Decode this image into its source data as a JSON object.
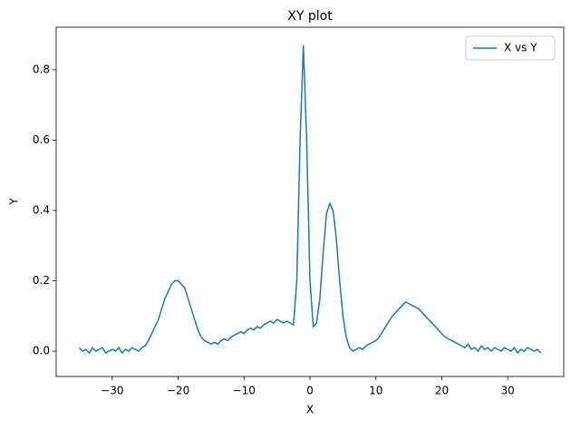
{
  "chart_data": {
    "type": "line",
    "title": "XY plot",
    "x_label": "X",
    "y_label": "Y",
    "x": [
      -35,
      -34.5,
      -34,
      -33.5,
      -33,
      -32.5,
      -32,
      -31.5,
      -31,
      -30.5,
      -30,
      -29.5,
      -29,
      -28.5,
      -28,
      -27.5,
      -27,
      -26.5,
      -26,
      -25.5,
      -25,
      -24.5,
      -24,
      -23.5,
      -23,
      -22.5,
      -22,
      -21.5,
      -21,
      -20.5,
      -20,
      -19.5,
      -19,
      -18.5,
      -18,
      -17.5,
      -17,
      -16.5,
      -16,
      -15.5,
      -15,
      -14.5,
      -14,
      -13.5,
      -13,
      -12.5,
      -12,
      -11.5,
      -11,
      -10.5,
      -10,
      -9.5,
      -9,
      -8.5,
      -8,
      -7.5,
      -7,
      -6.5,
      -6,
      -5.5,
      -5,
      -4.5,
      -4,
      -3.5,
      -3,
      -2.5,
      -2,
      -1.5,
      -1,
      -0.5,
      0,
      0.5,
      1,
      1.5,
      2,
      2.5,
      3,
      3.5,
      4,
      4.5,
      5,
      5.5,
      6,
      6.5,
      7,
      7.5,
      8,
      8.5,
      9,
      9.5,
      10,
      10.5,
      11,
      11.5,
      12,
      12.5,
      13,
      13.5,
      14,
      14.5,
      15,
      15.5,
      16,
      16.5,
      17,
      17.5,
      18,
      18.5,
      19,
      19.5,
      20,
      20.5,
      21,
      21.5,
      22,
      22.5,
      23,
      23.5,
      24,
      24.5,
      25,
      25.5,
      26,
      26.5,
      27,
      27.5,
      28,
      28.5,
      29,
      29.5,
      30,
      30.5,
      31,
      31.5,
      32,
      32.5,
      33,
      33.5,
      34,
      34.5,
      35
    ],
    "series": [
      {
        "name": "X vs Y",
        "color": "#1f77b4",
        "values": [
          0.01,
          0.0,
          0.005,
          -0.005,
          0.01,
          0.0,
          0.005,
          0.01,
          -0.005,
          0.0,
          0.005,
          0.0,
          0.01,
          -0.005,
          0.005,
          0.0,
          0.01,
          0.005,
          0.0,
          0.01,
          0.015,
          0.03,
          0.05,
          0.07,
          0.09,
          0.12,
          0.15,
          0.17,
          0.19,
          0.2,
          0.2,
          0.19,
          0.18,
          0.15,
          0.12,
          0.09,
          0.06,
          0.04,
          0.03,
          0.025,
          0.02,
          0.025,
          0.02,
          0.03,
          0.035,
          0.03,
          0.04,
          0.045,
          0.05,
          0.055,
          0.05,
          0.06,
          0.065,
          0.06,
          0.07,
          0.065,
          0.075,
          0.08,
          0.085,
          0.08,
          0.09,
          0.085,
          0.08,
          0.085,
          0.08,
          0.075,
          0.2,
          0.6,
          0.87,
          0.6,
          0.2,
          0.07,
          0.08,
          0.15,
          0.28,
          0.39,
          0.42,
          0.4,
          0.32,
          0.2,
          0.1,
          0.04,
          0.01,
          0.0,
          0.005,
          0.01,
          0.005,
          0.015,
          0.02,
          0.025,
          0.03,
          0.04,
          0.055,
          0.07,
          0.085,
          0.1,
          0.11,
          0.12,
          0.13,
          0.14,
          0.135,
          0.13,
          0.125,
          0.12,
          0.11,
          0.1,
          0.09,
          0.08,
          0.07,
          0.06,
          0.05,
          0.04,
          0.035,
          0.03,
          0.025,
          0.02,
          0.015,
          0.01,
          0.02,
          0.005,
          0.01,
          0.0,
          0.015,
          0.005,
          0.01,
          0.0,
          0.01,
          0.005,
          0.0,
          0.01,
          0.005,
          0.0,
          0.01,
          -0.005,
          0.005,
          0.0,
          0.01,
          0.005,
          0.0,
          0.005,
          -0.005
        ]
      }
    ],
    "xlim": [
      -38.5,
      38.5
    ],
    "ylim": [
      -0.072,
      0.921
    ],
    "xticks": [
      {
        "value": -30,
        "label": "−30"
      },
      {
        "value": -20,
        "label": "−20"
      },
      {
        "value": -10,
        "label": "−10"
      },
      0,
      10,
      20,
      30
    ],
    "yticks": [
      {
        "value": 0,
        "label": "0.0"
      },
      0.2,
      0.4,
      0.6,
      0.8
    ],
    "legend": "upper right"
  }
}
